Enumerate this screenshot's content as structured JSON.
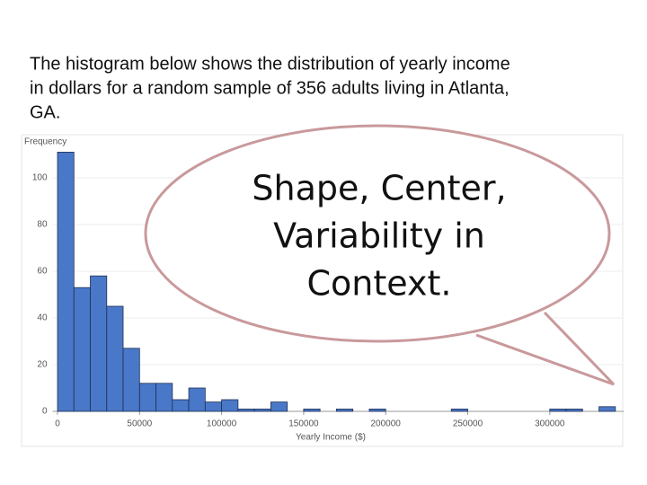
{
  "intro_text": [
    "The histogram below shows the distribution of yearly income",
    "in dollars for a random sample of 356 adults living in Atlanta,",
    "GA."
  ],
  "bubble_text": [
    "Shape, Center,",
    "Variability in",
    "Context."
  ],
  "chart_data": {
    "type": "histogram",
    "x_label": "Yearly Income ($)",
    "y_label": "Frequency",
    "color": "#4a78c8",
    "bins": [
      0,
      10000,
      20000,
      30000,
      40000,
      50000,
      60000,
      70000,
      80000,
      90000,
      100000,
      110000,
      120000,
      130000,
      140000,
      150000,
      160000,
      170000,
      180000,
      190000,
      200000,
      210000,
      220000,
      230000,
      240000,
      250000,
      260000,
      270000,
      280000,
      290000,
      300000,
      310000,
      320000,
      330000,
      340000
    ],
    "counts": [
      111,
      53,
      58,
      45,
      27,
      12,
      12,
      5,
      10,
      4,
      5,
      1,
      1,
      4,
      0,
      1,
      0,
      1,
      0,
      1,
      0,
      0,
      0,
      0,
      1,
      0,
      0,
      0,
      0,
      0,
      1,
      1,
      0,
      2
    ],
    "xlim": [
      -3000,
      345000
    ],
    "ylim": [
      0,
      118
    ],
    "xticks": [
      0,
      50000,
      100000,
      150000,
      200000,
      250000,
      300000
    ],
    "yticks": [
      0,
      20,
      40,
      60,
      80,
      100
    ],
    "grid": true
  }
}
